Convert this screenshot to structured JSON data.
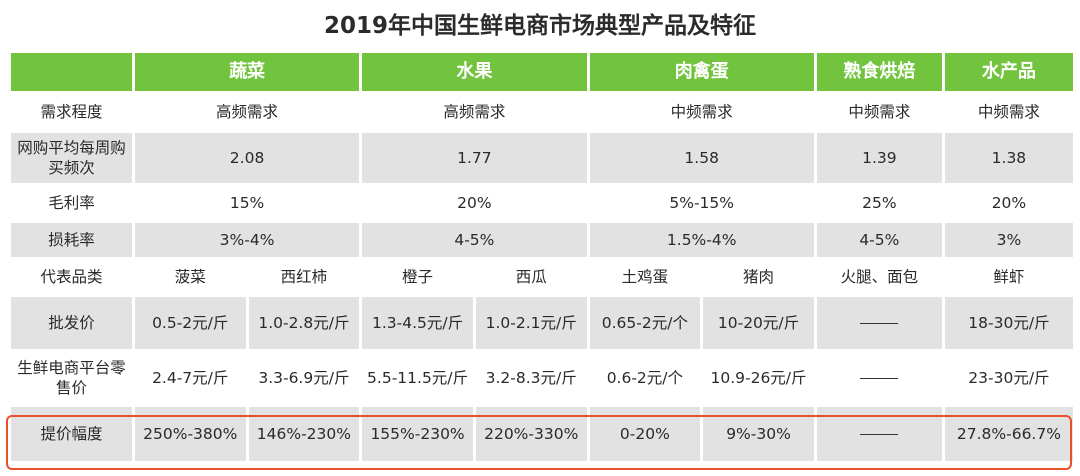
{
  "title": "2019年中国生鲜电商市场典型产品及特征",
  "colors": {
    "header_bg": "#72c43f",
    "highlight_border": "#e8502a",
    "row_alt": "#e2e2e2"
  },
  "headers": [
    "蔬菜",
    "水果",
    "肉禽蛋",
    "熟食烘焙",
    "水产品"
  ],
  "rows": {
    "demand": {
      "label": "需求程度",
      "values": [
        "高频需求",
        "高频需求",
        "中频需求",
        "中频需求",
        "中频需求"
      ]
    },
    "frequency": {
      "label": "网购平均每周购买频次",
      "values": [
        "2.08",
        "1.77",
        "1.58",
        "1.39",
        "1.38"
      ]
    },
    "margin": {
      "label": "毛利率",
      "values": [
        "15%",
        "20%",
        "5%-15%",
        "25%",
        "20%"
      ]
    },
    "loss": {
      "label": "损耗率",
      "values": [
        "3%-4%",
        "4-5%",
        "1.5%-4%",
        "4-5%",
        "3%"
      ]
    },
    "products": {
      "label": "代表品类",
      "values": [
        "菠菜",
        "西红柿",
        "橙子",
        "西瓜",
        "土鸡蛋",
        "猪肉",
        "火腿、面包",
        "鲜虾"
      ]
    },
    "wholesale": {
      "label": "批发价",
      "values": [
        "0.5-2元/斤",
        "1.0-2.8元/斤",
        "1.3-4.5元/斤",
        "1.0-2.1元/斤",
        "0.65-2元/个",
        "10-20元/斤",
        "——",
        "18-30元/斤"
      ]
    },
    "retail": {
      "label": "生鲜电商平台零售价",
      "values": [
        "2.4-7元/斤",
        "3.3-6.9元/斤",
        "5.5-11.5元/斤",
        "3.2-8.3元/斤",
        "0.6-2元/个",
        "10.9-26元/斤",
        "——",
        "23-30元/斤"
      ]
    },
    "markup": {
      "label": "提价幅度",
      "values": [
        "250%-380%",
        "146%-230%",
        "155%-230%",
        "220%-330%",
        "0-20%",
        "9%-30%",
        "——",
        "27.8%-66.7%"
      ]
    }
  }
}
